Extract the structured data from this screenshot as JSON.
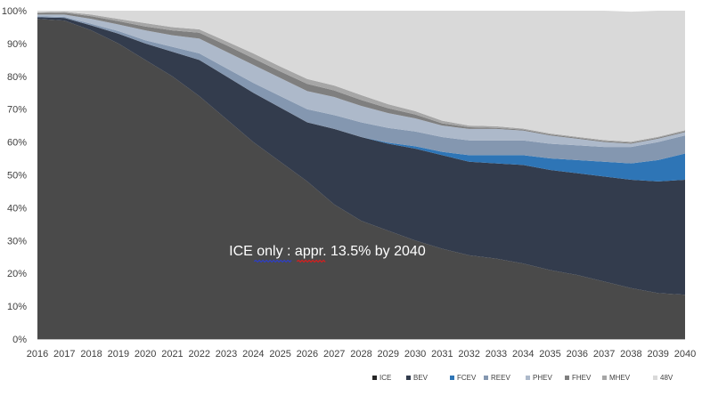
{
  "chart_data": {
    "type": "area",
    "stacked": true,
    "x": [
      2016,
      2017,
      2018,
      2019,
      2020,
      2021,
      2022,
      2023,
      2024,
      2025,
      2026,
      2027,
      2028,
      2029,
      2030,
      2031,
      2032,
      2033,
      2034,
      2035,
      2036,
      2037,
      2038,
      2039,
      2040
    ],
    "x_tick_labels": [
      "2016",
      "2017",
      "2018",
      "2019",
      "2020",
      "2021",
      "2022",
      "2023",
      "2024",
      "2025",
      "2026",
      "2027",
      "2028",
      "2029",
      "2030",
      "2031",
      "2032",
      "2033",
      "2034",
      "2035",
      "2036",
      "2037",
      "2038",
      "2039",
      "2040"
    ],
    "y_tick_labels": [
      "0%",
      "10%",
      "20%",
      "30%",
      "40%",
      "50%",
      "60%",
      "70%",
      "80%",
      "90%",
      "100%"
    ],
    "ylim": [
      0,
      100
    ],
    "y_unit": "%",
    "grid": false,
    "legend_position": "bottom-right",
    "annotation": {
      "text": "ICE only : appr. 13.5% by 2040",
      "anchor_x": 2023.3,
      "anchor_y": 25,
      "color": "#ffffff"
    },
    "series": [
      {
        "name": "ICE",
        "color": "#4a4a4a",
        "legend_color": "#262626",
        "values": [
          97.5,
          97,
          94,
          90,
          85,
          80,
          74,
          67,
          60,
          54,
          48,
          41,
          36,
          33,
          30,
          27.5,
          25.5,
          24.5,
          23,
          21,
          19.5,
          17.5,
          15.5,
          14,
          13.5
        ]
      },
      {
        "name": "BEV",
        "color": "#333c4d",
        "values": [
          0.5,
          0.8,
          1.5,
          3,
          5,
          7.5,
          11,
          13,
          15,
          16.5,
          18,
          23,
          25.5,
          26.5,
          28,
          28.5,
          28.5,
          29,
          30,
          30.5,
          31,
          32,
          33,
          34,
          35
        ]
      },
      {
        "name": "FCEV",
        "color": "#2e75b6",
        "values": [
          0,
          0,
          0,
          0,
          0,
          0,
          0,
          0,
          0,
          0,
          0,
          0,
          0,
          0.3,
          0.7,
          1,
          2,
          2.5,
          3,
          3.5,
          4,
          4.5,
          5,
          6.5,
          8
        ]
      },
      {
        "name": "REEV",
        "color": "#8497b0",
        "values": [
          0.3,
          0.3,
          0.5,
          0.8,
          1,
          1.5,
          2,
          2.5,
          3,
          3.5,
          4,
          4.2,
          4.5,
          4.5,
          4.5,
          4.5,
          4.5,
          4.5,
          4.5,
          4.5,
          4.5,
          4.5,
          5,
          5.5,
          5.5
        ]
      },
      {
        "name": "PHEV",
        "color": "#adb9ca",
        "values": [
          0.5,
          0.7,
          1.5,
          2,
          3,
          3.5,
          4.5,
          5,
          5.5,
          5.5,
          5.5,
          5.5,
          5,
          4.5,
          4,
          3.5,
          3.5,
          3.5,
          3,
          2.5,
          2,
          1.5,
          1,
          1,
          1
        ]
      },
      {
        "name": "FHEV",
        "color": "#7f7f7f",
        "values": [
          0.5,
          0.6,
          0.8,
          1,
          1.2,
          1.5,
          1.8,
          2,
          2,
          2,
          2.2,
          2,
          1.8,
          1.5,
          1.2,
          0.7,
          0.5,
          0.3,
          0.3,
          0.3,
          0.3,
          0.3,
          0.3,
          0.3,
          0.3
        ]
      },
      {
        "name": "MHEV",
        "color": "#a6a6a6",
        "values": [
          0.2,
          0.3,
          0.5,
          0.7,
          1,
          1,
          1,
          1.2,
          1.5,
          1.5,
          1.5,
          1.5,
          1.5,
          1.2,
          1,
          0.8,
          0.5,
          0.5,
          0.3,
          0.3,
          0.3,
          0.3,
          0.3,
          0.3,
          0.3
        ]
      },
      {
        "name": "48V",
        "color": "#d9d9d9",
        "values": [
          0.5,
          0.3,
          1.2,
          2.5,
          3.8,
          5,
          5.7,
          9.3,
          13,
          17,
          20.8,
          22.8,
          25.7,
          28.5,
          30.6,
          33.5,
          35,
          35.2,
          35.9,
          37.4,
          38.4,
          39.4,
          39.6,
          38.4,
          36.4
        ]
      }
    ]
  }
}
